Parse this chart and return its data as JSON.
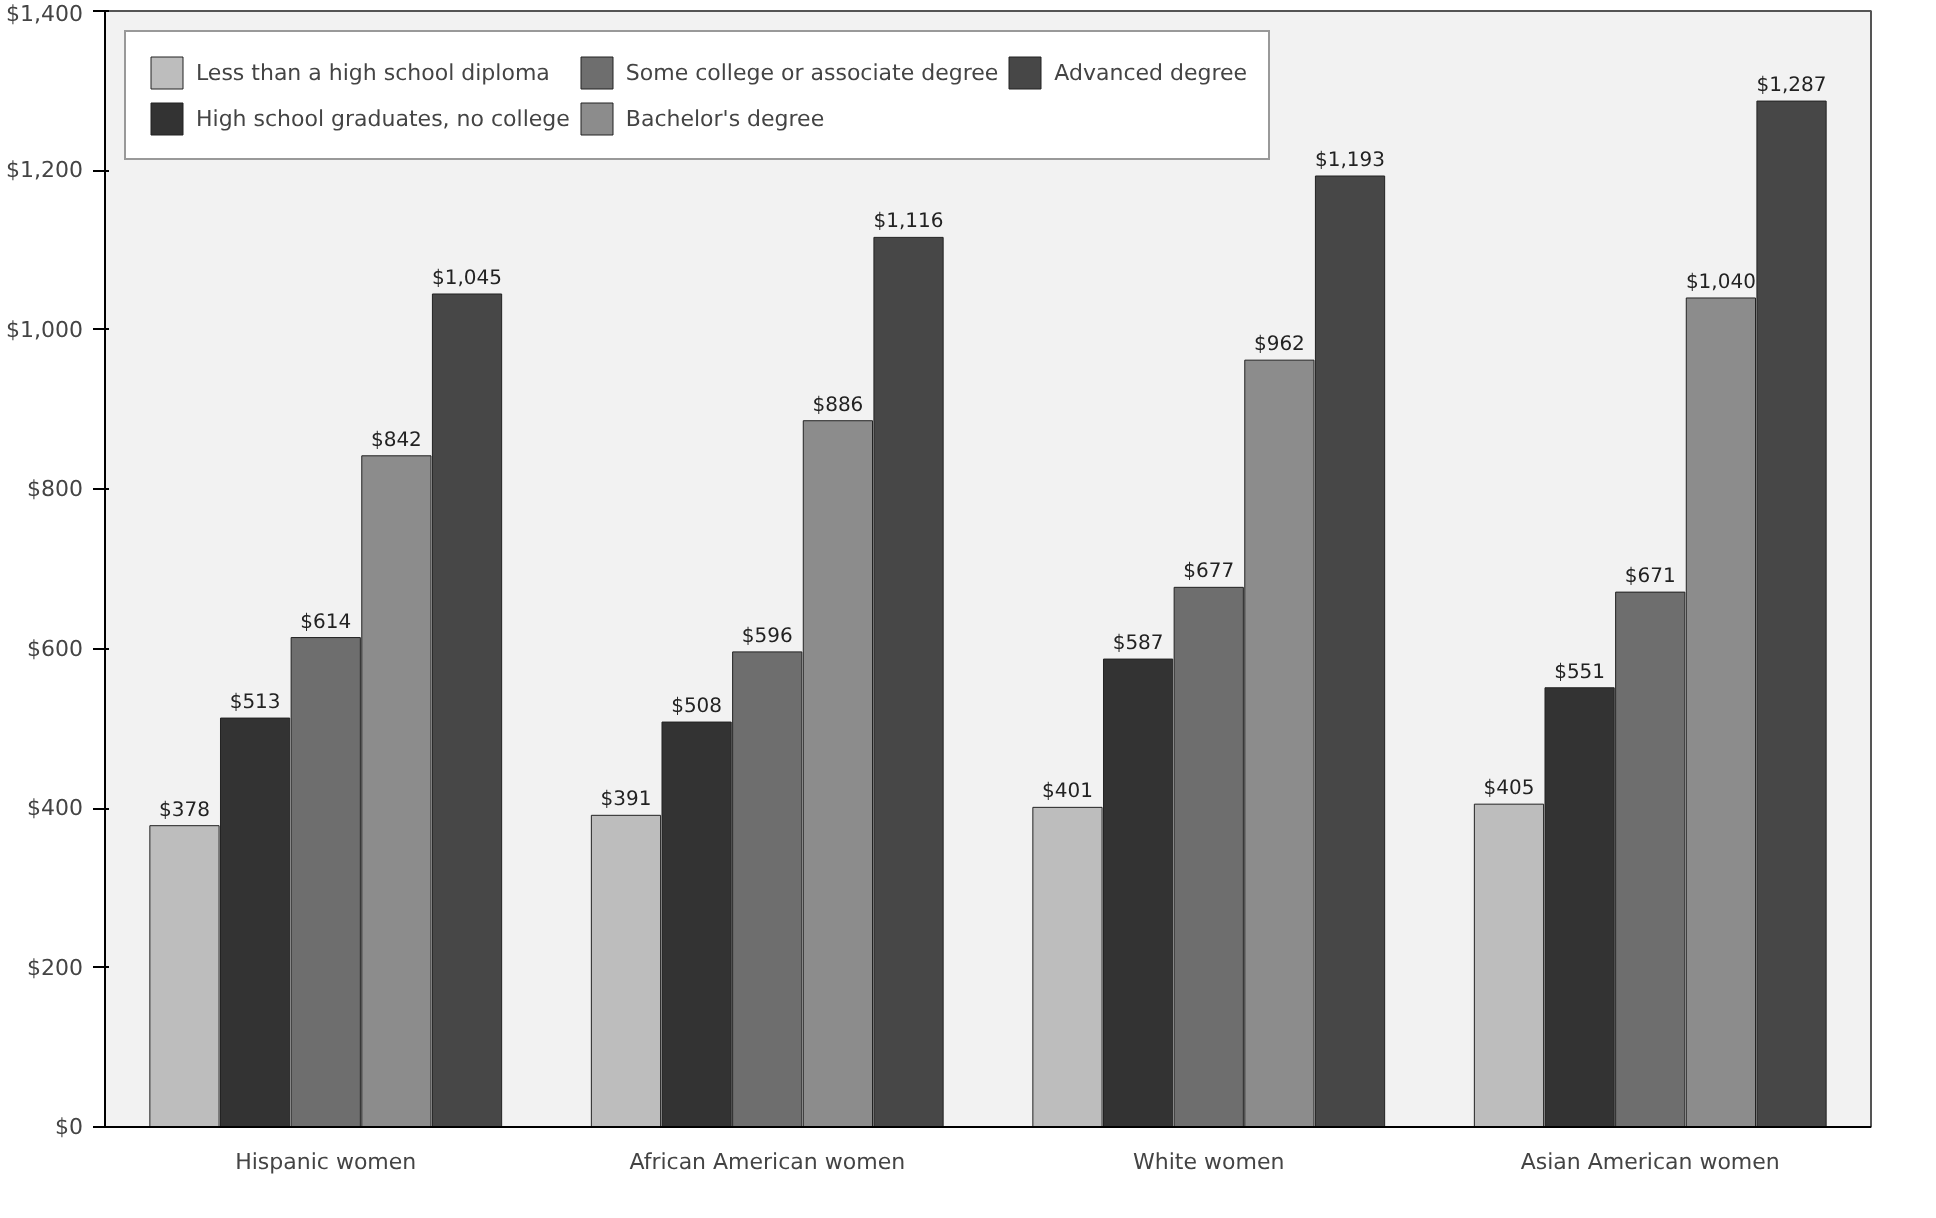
{
  "chart_data": {
    "type": "bar",
    "categories": [
      "Hispanic women",
      "African American women",
      "White women",
      "Asian American women"
    ],
    "series": [
      {
        "name": "Less than a high school diploma",
        "color": "#bdbdbd",
        "values": [
          378,
          391,
          401,
          405
        ],
        "value_labels": [
          "$378",
          "$391",
          "$401",
          "$405"
        ]
      },
      {
        "name": "High school graduates, no college",
        "color": "#333333",
        "values": [
          513,
          508,
          587,
          551
        ],
        "value_labels": [
          "$513",
          "$508",
          "$587",
          "$551"
        ]
      },
      {
        "name": "Some college or associate degree",
        "color": "#6e6e6e",
        "values": [
          614,
          596,
          677,
          671
        ],
        "value_labels": [
          "$614",
          "$596",
          "$677",
          "$671"
        ]
      },
      {
        "name": "Bachelor's degree",
        "color": "#8c8c8c",
        "values": [
          842,
          886,
          962,
          1040
        ],
        "value_labels": [
          "$842",
          "$886",
          "$962",
          "$1,040"
        ]
      },
      {
        "name": "Advanced degree",
        "color": "#474747",
        "values": [
          1045,
          1116,
          1193,
          1287
        ],
        "value_labels": [
          "$1,045",
          "$1,116",
          "$1,193",
          "$1,287"
        ]
      }
    ],
    "ylim": [
      0,
      1400
    ],
    "yticks": [
      {
        "value": 0,
        "label": "$0"
      },
      {
        "value": 200,
        "label": "$200"
      },
      {
        "value": 400,
        "label": "$400"
      },
      {
        "value": 600,
        "label": "$600"
      },
      {
        "value": 800,
        "label": "$800"
      },
      {
        "value": 1000,
        "label": "$1,000"
      },
      {
        "value": 1200,
        "label": "$1,200"
      },
      {
        "value": 1400,
        "label": "$1,400"
      }
    ],
    "grid": false,
    "legend": "top left"
  }
}
